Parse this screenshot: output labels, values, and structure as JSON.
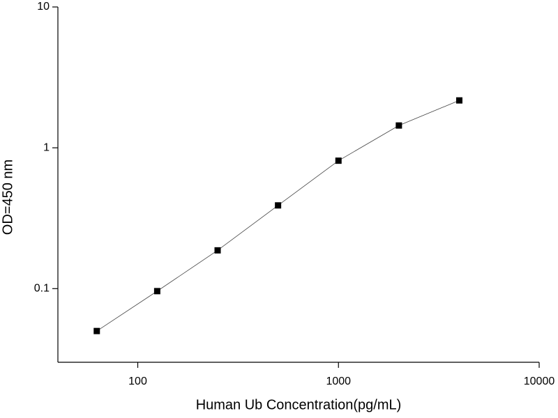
{
  "chart_data": {
    "type": "line",
    "x_label": "Human Ub Concentration(pg/mL)",
    "y_label": "OD=450 nm",
    "x": [
      62.5,
      125,
      250,
      500,
      1000,
      2000,
      4000
    ],
    "series": [
      {
        "color": "#000000",
        "values": [
          0.05,
          0.096,
          0.187,
          0.39,
          0.81,
          1.44,
          2.17
        ]
      }
    ],
    "x_log": true,
    "y_log": true,
    "xlim": [
      40,
      10000
    ],
    "ylim": [
      0.03,
      10
    ],
    "xticks": [
      100,
      1000,
      10000
    ],
    "yticks": [
      0.1,
      1,
      10
    ]
  }
}
